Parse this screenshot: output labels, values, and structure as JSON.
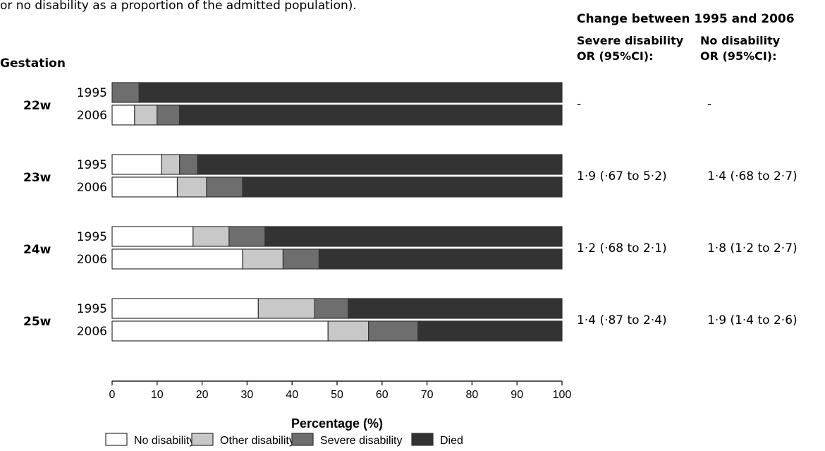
{
  "caption_line": "or no disability as a proportion of the admitted population).",
  "change_header": "Change between 1995 and 2006",
  "col_headers": {
    "severe": [
      "Severe disability",
      "OR (95%CI):"
    ],
    "none": [
      "No disability",
      "OR (95%CI):"
    ]
  },
  "gestation_label": "Gestation",
  "chart_data": {
    "type": "bar",
    "orientation": "horizontal",
    "stacked": true,
    "xlabel": "Percentage (%)",
    "xlim": [
      0,
      100
    ],
    "xticks": [
      0,
      10,
      20,
      30,
      40,
      50,
      60,
      70,
      80,
      90,
      100
    ],
    "grid": false,
    "legend_position": "bottom",
    "series": [
      {
        "name": "No disability",
        "color": "#ffffff"
      },
      {
        "name": "Other disability",
        "color": "#c8c8c8"
      },
      {
        "name": "Severe disability",
        "color": "#6e6e6e"
      },
      {
        "name": "Died",
        "color": "#333333"
      }
    ],
    "groups": [
      {
        "label": "22w",
        "rows": [
          {
            "year": "1995",
            "values": [
              0,
              0,
              6,
              94
            ]
          },
          {
            "year": "2006",
            "values": [
              5,
              5,
              5,
              85
            ]
          }
        ],
        "or_severe": "-",
        "or_none": "-"
      },
      {
        "label": "23w",
        "rows": [
          {
            "year": "1995",
            "values": [
              11,
              4,
              4,
              81
            ]
          },
          {
            "year": "2006",
            "values": [
              14.5,
              6.5,
              8,
              71
            ]
          }
        ],
        "or_severe": "1·9 (·67 to 5·2)",
        "or_none": "1·4 (·68 to 2·7)"
      },
      {
        "label": "24w",
        "rows": [
          {
            "year": "1995",
            "values": [
              18,
              8,
              8,
              66
            ]
          },
          {
            "year": "2006",
            "values": [
              29,
              9,
              8,
              54
            ]
          }
        ],
        "or_severe": "1·2 (·68 to 2·1)",
        "or_none": "1·8 (1·2 to 2·7)"
      },
      {
        "label": "25w",
        "rows": [
          {
            "year": "1995",
            "values": [
              32.5,
              12.5,
              7.5,
              47.5
            ]
          },
          {
            "year": "2006",
            "values": [
              48,
              9,
              11,
              32
            ]
          }
        ],
        "or_severe": "1·4 (·87 to 2·4)",
        "or_none": "1·9 (1·4 to 2·6)"
      }
    ]
  }
}
